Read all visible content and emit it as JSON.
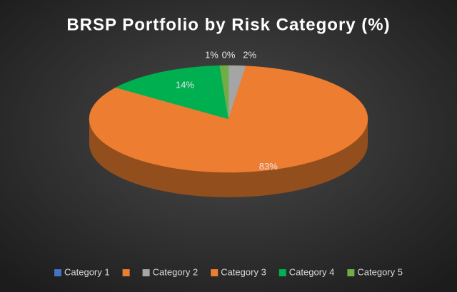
{
  "chart_data": {
    "type": "pie",
    "title": "BRSP Portfolio by Risk Category (%)",
    "categories": [
      "Category 1",
      null,
      "Category 2",
      "Category 3",
      "Category 4",
      "Category 5"
    ],
    "values": [
      0,
      null,
      2,
      83,
      14,
      1
    ],
    "value_labels": [
      "0%",
      null,
      "2%",
      "83%",
      "14%",
      "1%"
    ],
    "colors": [
      "#4472c4",
      "#ed7d31",
      "#a5a5a5",
      "#ed7d31",
      "#00b050",
      "#70ad47"
    ]
  }
}
